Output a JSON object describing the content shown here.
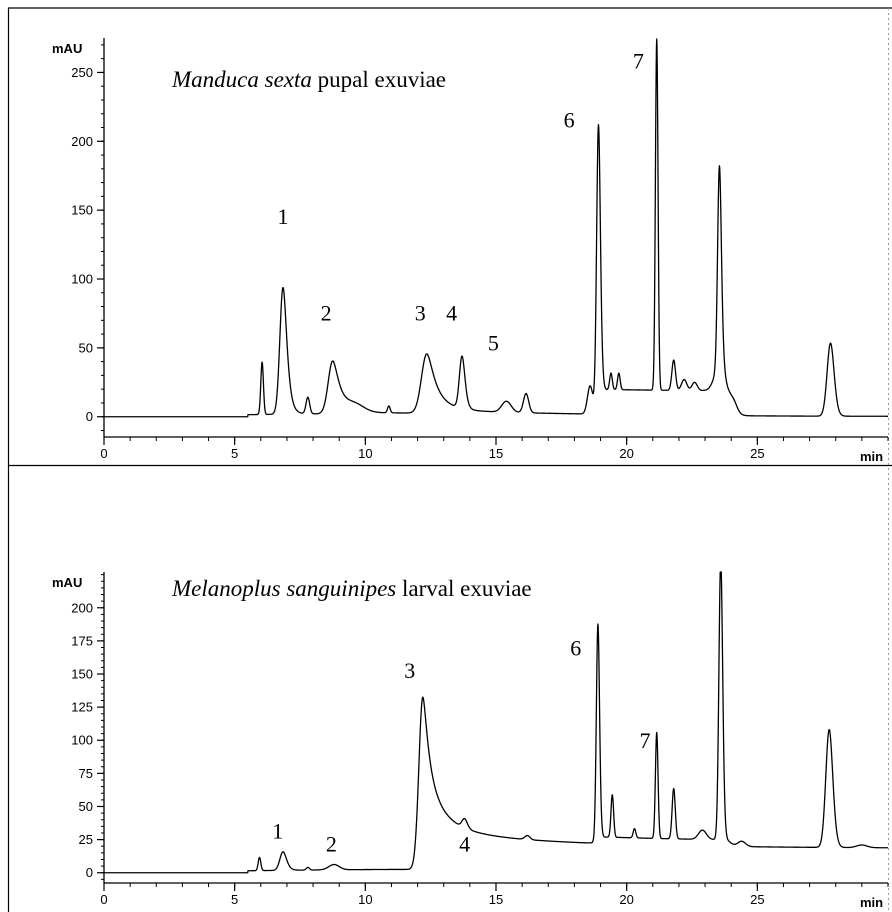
{
  "chart_data": [
    {
      "type": "line",
      "title_italic": "Manduca sexta",
      "title_rest": " pupal exuviae",
      "ylabel": "mAU",
      "xlabel": "min",
      "xlim": [
        0,
        30
      ],
      "ylim": [
        -14,
        275
      ],
      "x_ticks": [
        0,
        5,
        10,
        15,
        20,
        25
      ],
      "y_ticks": [
        0,
        50,
        100,
        150,
        200,
        250
      ],
      "y_minor": 10,
      "x_minor": 1,
      "peaks": [
        {
          "t": 6.05,
          "h": 38,
          "w": 0.05,
          "tail": 0.0
        },
        {
          "t": 6.85,
          "h": 92,
          "w": 0.12,
          "tail": 0.15
        },
        {
          "t": 7.8,
          "h": 12,
          "w": 0.07,
          "tail": 0.0
        },
        {
          "t": 8.75,
          "h": 38,
          "w": 0.17,
          "tail": 0.25
        },
        {
          "t": 9.6,
          "h": 5,
          "w": 0.35,
          "tail": 0.0
        },
        {
          "t": 10.9,
          "h": 5,
          "w": 0.05,
          "tail": 0.0
        },
        {
          "t": 12.35,
          "h": 43,
          "w": 0.2,
          "tail": 0.3
        },
        {
          "t": 13.7,
          "h": 38,
          "w": 0.1,
          "tail": 0.1
        },
        {
          "t": 15.4,
          "h": 8,
          "w": 0.18,
          "tail": 0.0
        },
        {
          "t": 16.15,
          "h": 14,
          "w": 0.1,
          "tail": 0.0
        },
        {
          "t": 18.6,
          "h": 20,
          "w": 0.1,
          "tail": 0.0
        },
        {
          "t": 18.92,
          "h": 200,
          "w": 0.07,
          "tail": 0.06
        },
        {
          "t": 19.4,
          "h": 12,
          "w": 0.05,
          "tail": 0.0
        },
        {
          "t": 19.7,
          "h": 12,
          "w": 0.05,
          "tail": 0.0
        },
        {
          "t": 21.15,
          "h": 255,
          "w": 0.05,
          "tail": 0.0
        },
        {
          "t": 21.8,
          "h": 22,
          "w": 0.07,
          "tail": 0.0
        },
        {
          "t": 22.2,
          "h": 8,
          "w": 0.1,
          "tail": 0.0
        },
        {
          "t": 22.6,
          "h": 6,
          "w": 0.1,
          "tail": 0.0
        },
        {
          "t": 23.55,
          "h": 150,
          "w": 0.07,
          "tail": 0.08
        },
        {
          "t": 27.8,
          "h": 53,
          "w": 0.13,
          "tail": 0.05
        }
      ],
      "broad": [
        {
          "a": 18.9,
          "b": 23.8,
          "h": 18
        },
        {
          "a": 23.3,
          "b": 24.2,
          "h": 15
        }
      ],
      "labels": [
        {
          "text": "1",
          "t": 6.85,
          "v": 140
        },
        {
          "text": "2",
          "t": 8.5,
          "v": 70
        },
        {
          "text": "3",
          "t": 12.1,
          "v": 70
        },
        {
          "text": "4",
          "t": 13.3,
          "v": 70
        },
        {
          "text": "5",
          "t": 14.9,
          "v": 48
        },
        {
          "text": "6",
          "t": 17.8,
          "v": 210
        },
        {
          "text": "7",
          "t": 20.45,
          "v": 253
        }
      ]
    },
    {
      "type": "line",
      "title_italic": "Melanoplus sanguinipes",
      "title_rest": " larval exuviae",
      "ylabel": "mAU",
      "xlabel": "min",
      "xlim": [
        0,
        30
      ],
      "ylim": [
        -7,
        227
      ],
      "x_ticks": [
        0,
        5,
        10,
        15,
        20,
        25
      ],
      "y_ticks": [
        0,
        25,
        50,
        75,
        100,
        125,
        150,
        175,
        200
      ],
      "y_minor": 5,
      "x_minor": 1,
      "peaks": [
        {
          "t": 5.95,
          "h": 10,
          "w": 0.05,
          "tail": 0.0
        },
        {
          "t": 6.85,
          "h": 14,
          "w": 0.12,
          "tail": 0.1
        },
        {
          "t": 7.8,
          "h": 2,
          "w": 0.06,
          "tail": 0.0
        },
        {
          "t": 8.8,
          "h": 4,
          "w": 0.2,
          "tail": 0.0
        },
        {
          "t": 12.2,
          "h": 130,
          "w": 0.15,
          "tail": 0.5
        },
        {
          "t": 13.8,
          "h": 7,
          "w": 0.1,
          "tail": 0.05
        },
        {
          "t": 16.2,
          "h": 3,
          "w": 0.1,
          "tail": 0.0
        },
        {
          "t": 18.9,
          "h": 163,
          "w": 0.06,
          "tail": 0.04
        },
        {
          "t": 19.45,
          "h": 32,
          "w": 0.05,
          "tail": 0.0
        },
        {
          "t": 20.3,
          "h": 7,
          "w": 0.05,
          "tail": 0.0
        },
        {
          "t": 21.15,
          "h": 80,
          "w": 0.05,
          "tail": 0.0
        },
        {
          "t": 21.8,
          "h": 38,
          "w": 0.06,
          "tail": 0.0
        },
        {
          "t": 22.9,
          "h": 7,
          "w": 0.15,
          "tail": 0.0
        },
        {
          "t": 23.6,
          "h": 212,
          "w": 0.07,
          "tail": 0.05
        },
        {
          "t": 24.4,
          "h": 4,
          "w": 0.15,
          "tail": 0.0
        },
        {
          "t": 27.75,
          "h": 89,
          "w": 0.13,
          "tail": 0.05
        },
        {
          "t": 29.0,
          "h": 2,
          "w": 0.2,
          "tail": 0.0
        }
      ],
      "broad": [
        {
          "a": 18.9,
          "b": 24.0,
          "h": 5
        }
      ],
      "labels": [
        {
          "text": "1",
          "t": 6.65,
          "v": 26
        },
        {
          "text": "2",
          "t": 8.7,
          "v": 16
        },
        {
          "text": "3",
          "t": 11.7,
          "v": 147
        },
        {
          "text": "4",
          "t": 13.8,
          "v": 16
        },
        {
          "text": "6",
          "t": 18.05,
          "v": 164
        },
        {
          "text": "7",
          "t": 20.7,
          "v": 94
        }
      ]
    }
  ]
}
